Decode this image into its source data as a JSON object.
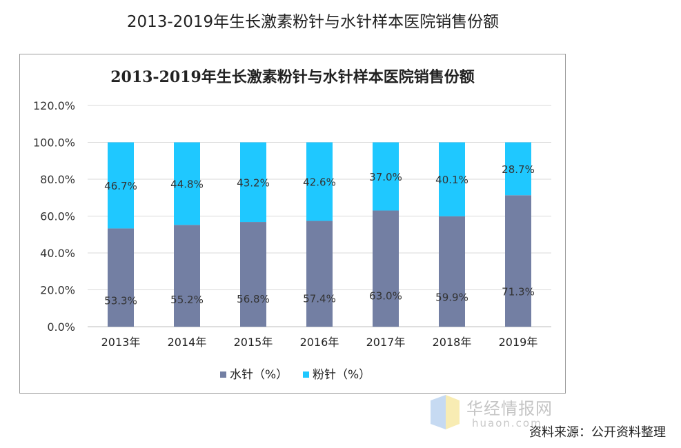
{
  "page": {
    "title": "2013-2019年生长激素粉针与水针样本医院销售份额",
    "source": "资料来源：公开资料整理"
  },
  "watermark": {
    "name_cn": "华经情报网",
    "name_en": "huaon.com"
  },
  "chart_data": {
    "type": "bar",
    "stacked": true,
    "title": "2013-2019年生长激素粉针与水针样本医院销售份额",
    "categories": [
      "2013年",
      "2014年",
      "2015年",
      "2016年",
      "2017年",
      "2018年",
      "2019年"
    ],
    "series": [
      {
        "name": "水针（%）",
        "color": "#737fa3",
        "values": [
          53.3,
          55.2,
          56.8,
          57.4,
          63.0,
          59.9,
          71.3
        ],
        "labels": [
          "53.3%",
          "55.2%",
          "56.8%",
          "57.4%",
          "63.0%",
          "59.9%",
          "71.3%"
        ]
      },
      {
        "name": "粉针（%）",
        "color": "#1fc8ff",
        "values": [
          46.7,
          44.8,
          43.2,
          42.6,
          37.0,
          40.1,
          28.7
        ],
        "labels": [
          "46.7%",
          "44.8%",
          "43.2%",
          "42.6%",
          "37.0%",
          "40.1%",
          "28.7%"
        ]
      }
    ],
    "yticks": [
      "0.0%",
      "20.0%",
      "40.0%",
      "60.0%",
      "80.0%",
      "100.0%",
      "120.0%"
    ],
    "ylim": [
      0,
      120
    ],
    "grid": true,
    "legend": "bottom"
  }
}
